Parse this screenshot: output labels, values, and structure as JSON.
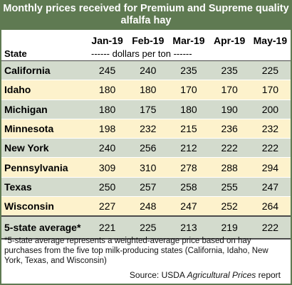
{
  "title_line1": "Monthly prices received for Premium and Supreme quality",
  "title_line2": "alfalfa hay",
  "columns": [
    "Jan-19",
    "Feb-19",
    "Mar-19",
    "Apr-19",
    "May-19"
  ],
  "state_header": "State",
  "units_label": "------ dollars per ton ------",
  "rows": [
    {
      "state": "California",
      "values": [
        "245",
        "240",
        "235",
        "235",
        "225"
      ]
    },
    {
      "state": "Idaho",
      "values": [
        "180",
        "180",
        "170",
        "170",
        "170"
      ]
    },
    {
      "state": "Michigan",
      "values": [
        "180",
        "175",
        "180",
        "190",
        "200"
      ]
    },
    {
      "state": "Minnesota",
      "values": [
        "198",
        "232",
        "215",
        "236",
        "232"
      ]
    },
    {
      "state": "New York",
      "values": [
        "240",
        "256",
        "212",
        "222",
        "222"
      ]
    },
    {
      "state": "Pennsylvania",
      "values": [
        "309",
        "310",
        "278",
        "288",
        "294"
      ]
    },
    {
      "state": "Texas",
      "values": [
        "250",
        "257",
        "258",
        "255",
        "247"
      ]
    },
    {
      "state": "Wisconsin",
      "values": [
        "227",
        "248",
        "247",
        "252",
        "264"
      ]
    }
  ],
  "average": {
    "state": "5-state average*",
    "values": [
      "221",
      "225",
      "213",
      "219",
      "222"
    ]
  },
  "footnote": "*5-state average represents  a weighted-average price based on hay purchases from the five top milk-producing states (California, Idaho, New York, Texas, and Wisconsin)",
  "source_prefix": "Source: USDA ",
  "source_italic": "Agricultural Prices",
  "source_suffix": "  report",
  "colors": {
    "header": "#5f7a52",
    "band_green": "#d3dbcd",
    "band_yellow": "#fdf2cc"
  }
}
